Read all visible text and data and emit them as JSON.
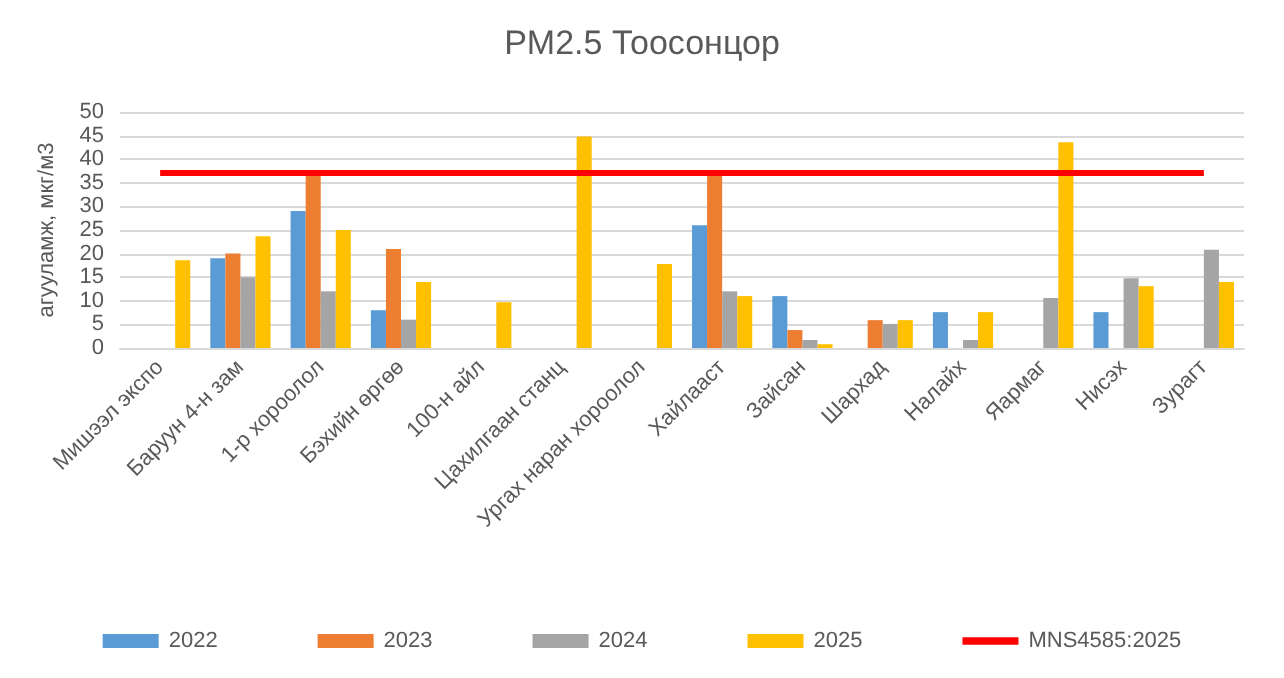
{
  "chart_data": {
    "type": "bar",
    "title": "PM2.5 Тоосонцор",
    "ylabel": "агууламж, мкг/м3",
    "categories": [
      "Мишээл экспо",
      "Баруун 4-н зам",
      "1-р хороолол",
      "Бэхийн өргөө",
      "100-н айл",
      "Цахилгаан станц",
      "Ургах наран хороолол",
      "Хайлааст",
      "Зайсан",
      "Шархад",
      "Налайх",
      "Яармаг",
      "Нисэх",
      "Зурагт"
    ],
    "series": [
      {
        "name": "2022",
        "color": "#5b9bd5",
        "values": [
          null,
          19,
          29,
          8,
          null,
          null,
          null,
          26,
          11,
          null,
          7.6,
          null,
          7.6,
          null
        ]
      },
      {
        "name": "2023",
        "color": "#ed7d31",
        "values": [
          null,
          20,
          37,
          21,
          null,
          null,
          null,
          37,
          3.8,
          5.9,
          null,
          null,
          null,
          null
        ]
      },
      {
        "name": "2024",
        "color": "#a5a5a5",
        "values": [
          null,
          15,
          12,
          6,
          null,
          null,
          null,
          12,
          1.7,
          5.1,
          1.7,
          10.6,
          14.8,
          20.8
        ]
      },
      {
        "name": "2025",
        "color": "#ffc000",
        "values": [
          18.6,
          23.7,
          25,
          14,
          9.7,
          44.8,
          17.8,
          11,
          0.8,
          5.9,
          7.6,
          43.6,
          13.1,
          14
        ]
      },
      {
        "name": "MNS4585:2025",
        "type": "line",
        "color": "#ff0000",
        "values": [
          37.1,
          37.1,
          37.1,
          37.1,
          37.1,
          37.1,
          37.1,
          37.1,
          37.1,
          37.1,
          37.1,
          37.1,
          37.1,
          37.1
        ]
      }
    ],
    "ylim": [
      0,
      50
    ],
    "yticks": [
      0,
      5,
      10,
      15,
      20,
      25,
      30,
      35,
      40,
      45,
      50
    ],
    "grid": "y",
    "legend": "bottom"
  }
}
